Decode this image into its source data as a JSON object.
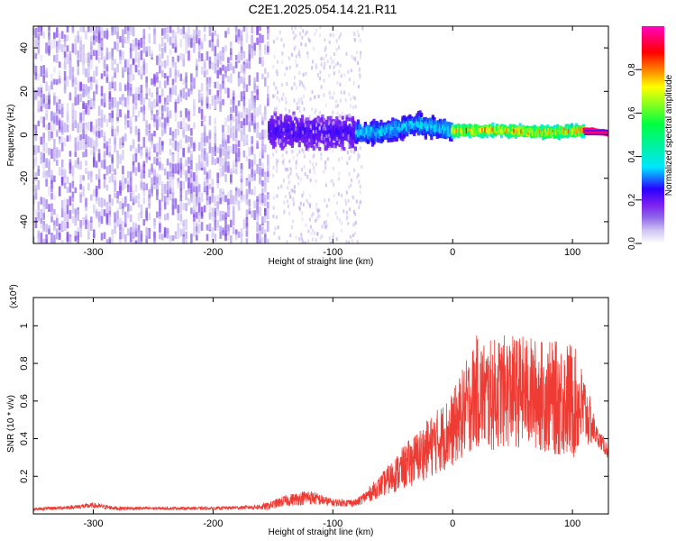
{
  "title": "C2E1.2025.054.14.21.R11",
  "colors": {
    "snr_line": "#ee3b33",
    "spectrogram_cmap": [
      "#ffffff",
      "#cfc4f2",
      "#8f66e9",
      "#7a1ff0",
      "#2a00ff",
      "#00e5ff",
      "#00ff40",
      "#ffff00",
      "#ff0000",
      "#ff00c0"
    ]
  },
  "chart_data": [
    {
      "type": "heatmap",
      "xlabel": "Height of straight line (km)",
      "ylabel": "Frequency (Hz)",
      "xlim": [
        -350,
        130
      ],
      "ylim": [
        -50,
        50
      ],
      "x_ticks": [
        -300,
        -200,
        -100,
        0,
        100
      ],
      "y_ticks": [
        -40,
        -20,
        0,
        20,
        40
      ],
      "colorbar": {
        "label": "Normalized spectral amplitude",
        "range": [
          0,
          1
        ],
        "ticks": [
          "0.0",
          "0.2",
          "0.4",
          "0.6",
          "0.8"
        ],
        "tick_values": [
          0,
          0.2,
          0.4,
          0.6,
          0.8
        ]
      },
      "regions": [
        {
          "x": [
            -350,
            -153
          ],
          "freq_range": [
            -50,
            50
          ],
          "amplitude": [
            0.05,
            0.15
          ]
        },
        {
          "x": [
            -153,
            -80
          ],
          "freq_range": [
            -10,
            10
          ],
          "amplitude": [
            0.15,
            0.25
          ]
        },
        {
          "x": [
            -80,
            0
          ],
          "freq_range": [
            -4,
            8
          ],
          "amplitude": [
            0.2,
            0.4
          ]
        },
        {
          "x": [
            0,
            110
          ],
          "freq_range": [
            -2,
            4
          ],
          "amplitude": [
            0.3,
            0.9
          ]
        },
        {
          "x": [
            110,
            130
          ],
          "freq_range": [
            0,
            1
          ],
          "amplitude": [
            0.9,
            1.0
          ]
        }
      ],
      "ridge": {
        "x": [
          -150,
          -100,
          -60,
          -30,
          0,
          40,
          80,
          110,
          130
        ],
        "freq": [
          2,
          1,
          1,
          5,
          2,
          2,
          1,
          2,
          0.8
        ]
      }
    },
    {
      "type": "line",
      "xlabel": "Height of straight line (km)",
      "ylabel": "SNR (10 * v/v)",
      "y_multiplier": "(x10",
      "y_multiplier_exp": "4",
      "y_multiplier_close": ")",
      "xlim": [
        -350,
        130
      ],
      "ylim": [
        0,
        1.15
      ],
      "x_ticks": [
        -300,
        -200,
        -100,
        0,
        100
      ],
      "y_ticks": [
        0.2,
        0.4,
        0.6,
        0.8,
        1.0
      ],
      "series": [
        {
          "x": [
            -350,
            -320,
            -300,
            -280,
            -250,
            -200,
            -170,
            -155,
            -140,
            -120,
            -100,
            -80,
            -60,
            -40,
            -20,
            0,
            10,
            20,
            30,
            40,
            60,
            80,
            100,
            110,
            120,
            130
          ],
          "y": [
            0.025,
            0.035,
            0.045,
            0.03,
            0.03,
            0.03,
            0.035,
            0.04,
            0.07,
            0.09,
            0.06,
            0.06,
            0.15,
            0.25,
            0.35,
            0.45,
            0.55,
            0.65,
            0.62,
            0.65,
            0.65,
            0.62,
            0.6,
            0.55,
            0.42,
            0.33
          ],
          "spread": [
            0.008,
            0.01,
            0.015,
            0.01,
            0.008,
            0.008,
            0.01,
            0.02,
            0.03,
            0.04,
            0.02,
            0.02,
            0.06,
            0.12,
            0.16,
            0.2,
            0.25,
            0.3,
            0.3,
            0.3,
            0.3,
            0.3,
            0.32,
            0.2,
            0.05,
            0.04
          ]
        }
      ]
    }
  ]
}
